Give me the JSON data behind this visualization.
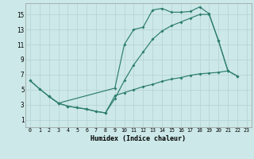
{
  "xlabel": "Humidex (Indice chaleur)",
  "bg_color": "#cce8e8",
  "grid_color": "#b8d4d4",
  "line_color": "#2d7d6e",
  "xlim": [
    -0.5,
    23.5
  ],
  "ylim": [
    0.0,
    16.5
  ],
  "xticks": [
    0,
    1,
    2,
    3,
    4,
    5,
    6,
    7,
    8,
    9,
    10,
    11,
    12,
    13,
    14,
    15,
    16,
    17,
    18,
    19,
    20,
    21,
    22,
    23
  ],
  "yticks": [
    1,
    3,
    5,
    7,
    9,
    11,
    13,
    15
  ],
  "line1_x": [
    0,
    1,
    2,
    3,
    9,
    10,
    11,
    12,
    13,
    14,
    15,
    16,
    17,
    18,
    19,
    20,
    21,
    22
  ],
  "line1_y": [
    6.2,
    5.1,
    4.1,
    3.2,
    5.2,
    11.0,
    13.0,
    13.3,
    15.6,
    15.8,
    15.3,
    15.3,
    15.4,
    16.0,
    15.1,
    11.5,
    7.5,
    6.8
  ],
  "line2_x": [
    0,
    1,
    2,
    3,
    4,
    5,
    6,
    7,
    8,
    9,
    10,
    11,
    12,
    13,
    14,
    15,
    16,
    17,
    18,
    19,
    20,
    21
  ],
  "line2_y": [
    6.2,
    5.1,
    4.1,
    3.2,
    2.8,
    2.6,
    2.4,
    2.1,
    1.9,
    3.8,
    6.2,
    8.3,
    10.0,
    11.7,
    12.8,
    13.5,
    14.0,
    14.5,
    15.0,
    15.0,
    11.5,
    7.5
  ],
  "line3_x": [
    2,
    3,
    4,
    5,
    6,
    7,
    8,
    9,
    10,
    11,
    12,
    13,
    14,
    15,
    16,
    17,
    18,
    19,
    20,
    21,
    22
  ],
  "line3_y": [
    4.1,
    3.2,
    2.8,
    2.6,
    2.4,
    2.1,
    1.9,
    4.2,
    4.6,
    5.0,
    5.4,
    5.7,
    6.1,
    6.4,
    6.6,
    6.9,
    7.1,
    7.2,
    7.3,
    7.5,
    6.8
  ]
}
